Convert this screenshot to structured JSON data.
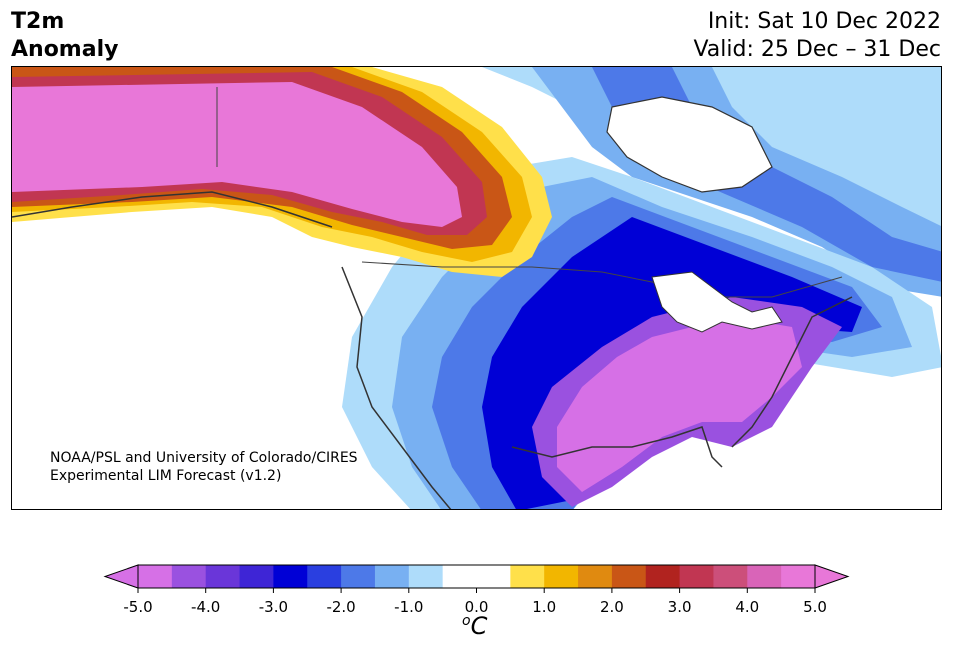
{
  "header": {
    "title_line1": "T2m",
    "title_line2": "Anomaly",
    "init": "Init: Sat 10 Dec 2022",
    "valid": "Valid: 25 Dec – 31 Dec"
  },
  "credit": {
    "line1": "NOAA/PSL and University of Colorado/CIRES",
    "line2": "Experimental LIM Forecast (v1.2)"
  },
  "colorbar": {
    "unit_prefix": "o",
    "unit_main": "C",
    "colors": [
      "#d670e6",
      "#9a51e0",
      "#6a36d9",
      "#3e25d6",
      "#0000d6",
      "#2a3fe0",
      "#4d79e8",
      "#78b0f2",
      "#aedcfa",
      "#ffffff",
      "#ffffff",
      "#ffe04a",
      "#f2b600",
      "#e08a10",
      "#c95616",
      "#b1231f",
      "#c13652",
      "#cc4f7a",
      "#d964b8",
      "#e877d8"
    ],
    "tick_labels": [
      "-5.0",
      "-4.0",
      "-3.0",
      "-2.0",
      "-1.0",
      "0.0",
      "1.0",
      "2.0",
      "3.0",
      "4.0",
      "5.0"
    ],
    "min": -5.0,
    "max": 5.0
  },
  "map_regions": {
    "alaska_yukon": "#e877d8",
    "warm_edge": "#c13652",
    "cold_core": "#0000d6",
    "south_purple": "#d670e6",
    "light_blue": "#aedcfa"
  }
}
